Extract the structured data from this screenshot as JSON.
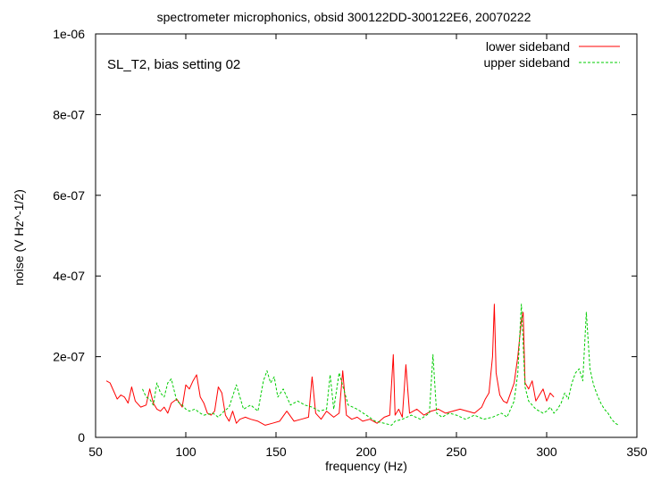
{
  "chart_data": {
    "type": "line",
    "title": "spectrometer microphonics, obsid 300122DD-300122E6, 20070222",
    "xlabel": "frequency (Hz)",
    "ylabel": "noise (V Hz^-1/2)",
    "annotation": "SL_T2, bias setting 02",
    "xlim": [
      50,
      350
    ],
    "ylim": [
      0,
      1e-06
    ],
    "x_ticks": [
      50,
      100,
      150,
      200,
      250,
      300,
      350
    ],
    "x_tick_labels": [
      "50",
      "100",
      "150",
      "200",
      "250",
      "300",
      "350"
    ],
    "y_ticks": [
      0,
      2e-07,
      4e-07,
      6e-07,
      8e-07,
      1e-06
    ],
    "y_tick_labels": [
      "0",
      "2e-07",
      "4e-07",
      "6e-07",
      "8e-07",
      "1e-06"
    ],
    "grid": false,
    "legend_position": "top-right",
    "series": [
      {
        "name": "lower sideband",
        "color": "#ff0000",
        "dash": "solid",
        "x": [
          56,
          58,
          60,
          62,
          64,
          66,
          68,
          70,
          72,
          75,
          78,
          80,
          82,
          84,
          86,
          88,
          90,
          92,
          95,
          98,
          100,
          102,
          104,
          106,
          108,
          110,
          112,
          114,
          116,
          118,
          120,
          122,
          124,
          126,
          128,
          130,
          133,
          136,
          140,
          144,
          148,
          152,
          156,
          160,
          164,
          168,
          170,
          172,
          175,
          178,
          182,
          185,
          187,
          189,
          192,
          195,
          198,
          202,
          206,
          210,
          213,
          215,
          216,
          218,
          220,
          222,
          224,
          228,
          232,
          236,
          240,
          244,
          248,
          252,
          256,
          260,
          264,
          266,
          268,
          270,
          271,
          272,
          274,
          276,
          278,
          280,
          282,
          284,
          286,
          287,
          288,
          290,
          292,
          294,
          296,
          298,
          300,
          302,
          304
        ],
        "y": [
          1.4e-07,
          1.35e-07,
          1.15e-07,
          9.5e-08,
          1.05e-07,
          1e-07,
          8.5e-08,
          1.25e-07,
          9e-08,
          7.5e-08,
          8e-08,
          1.2e-07,
          8.5e-08,
          7e-08,
          6.5e-08,
          7.5e-08,
          6e-08,
          8.5e-08,
          9.5e-08,
          7.5e-08,
          1.3e-07,
          1.2e-07,
          1.4e-07,
          1.55e-07,
          1e-07,
          8.5e-08,
          6e-08,
          5.5e-08,
          6.5e-08,
          1.25e-07,
          1.1e-07,
          5.5e-08,
          4e-08,
          6.5e-08,
          3.5e-08,
          4.5e-08,
          5e-08,
          4.5e-08,
          4e-08,
          3e-08,
          3.5e-08,
          4e-08,
          6.5e-08,
          4e-08,
          4.5e-08,
          5e-08,
          1.5e-07,
          6e-08,
          4.5e-08,
          6.5e-08,
          5e-08,
          6e-08,
          1.65e-07,
          5.5e-08,
          4.5e-08,
          5e-08,
          4e-08,
          4.5e-08,
          3.5e-08,
          5e-08,
          5.5e-08,
          2.05e-07,
          5.5e-08,
          7e-08,
          5e-08,
          1.8e-07,
          6e-08,
          7e-08,
          5.5e-08,
          6.5e-08,
          7e-08,
          6e-08,
          6.5e-08,
          7e-08,
          6.5e-08,
          6e-08,
          7.5e-08,
          9.5e-08,
          1.1e-07,
          2e-07,
          3.3e-07,
          1.6e-07,
          1.05e-07,
          9e-08,
          8.5e-08,
          1.1e-07,
          1.35e-07,
          2e-07,
          2.9e-07,
          3.1e-07,
          1.35e-07,
          1.2e-07,
          1.4e-07,
          9e-08,
          1.05e-07,
          1.2e-07,
          9e-08,
          1.1e-07,
          1e-07
        ]
      },
      {
        "name": "upper sideband",
        "color": "#00cc00",
        "dash": "dashed",
        "x": [
          76,
          78,
          80,
          82,
          84,
          86,
          88,
          90,
          92,
          95,
          98,
          100,
          102,
          105,
          108,
          110,
          115,
          118,
          120,
          124,
          128,
          132,
          136,
          140,
          143,
          145,
          147,
          149,
          151,
          154,
          158,
          162,
          166,
          170,
          174,
          178,
          180,
          182,
          185,
          190,
          195,
          200,
          205,
          210,
          214,
          216,
          220,
          225,
          230,
          235,
          237,
          239,
          242,
          246,
          250,
          255,
          260,
          265,
          270,
          275,
          278,
          280,
          282,
          284,
          286,
          288,
          290,
          292,
          294,
          296,
          298,
          300,
          302,
          304,
          306,
          308,
          310,
          312,
          314,
          316,
          318,
          320,
          322,
          324,
          326,
          328,
          330,
          332,
          334,
          336,
          338,
          340
        ],
        "y": [
          1.2e-07,
          1e-07,
          9.5e-08,
          8e-08,
          1.35e-07,
          1.1e-07,
          1e-07,
          1.35e-07,
          1.45e-07,
          9e-08,
          8e-08,
          7e-08,
          6.5e-08,
          7e-08,
          6e-08,
          5.5e-08,
          6e-08,
          5e-08,
          6e-08,
          7.5e-08,
          1.3e-07,
          7e-08,
          8e-08,
          6.5e-08,
          1.4e-07,
          1.65e-07,
          1.35e-07,
          1.5e-07,
          1e-07,
          1.2e-07,
          8e-08,
          9e-08,
          8e-08,
          7.5e-08,
          6.5e-08,
          7e-08,
          1.55e-07,
          7e-08,
          1.6e-07,
          8e-08,
          7e-08,
          5.5e-08,
          4e-08,
          3.5e-08,
          3e-08,
          4e-08,
          4.5e-08,
          5.5e-08,
          4.5e-08,
          6e-08,
          2.05e-07,
          6e-08,
          5e-08,
          6e-08,
          5.5e-08,
          4.5e-08,
          5.5e-08,
          4.5e-08,
          5e-08,
          6e-08,
          5e-08,
          7e-08,
          9e-08,
          1.6e-07,
          3.3e-07,
          1.25e-07,
          9e-08,
          8e-08,
          7e-08,
          6.5e-08,
          6e-08,
          6.5e-08,
          7.5e-08,
          6e-08,
          7e-08,
          8.5e-08,
          1.1e-07,
          9.5e-08,
          1.35e-07,
          1.6e-07,
          1.7e-07,
          1.4e-07,
          3.1e-07,
          1.7e-07,
          1.3e-07,
          1.05e-07,
          8.5e-08,
          7e-08,
          6e-08,
          4.5e-08,
          3.5e-08,
          3e-08
        ]
      }
    ]
  }
}
